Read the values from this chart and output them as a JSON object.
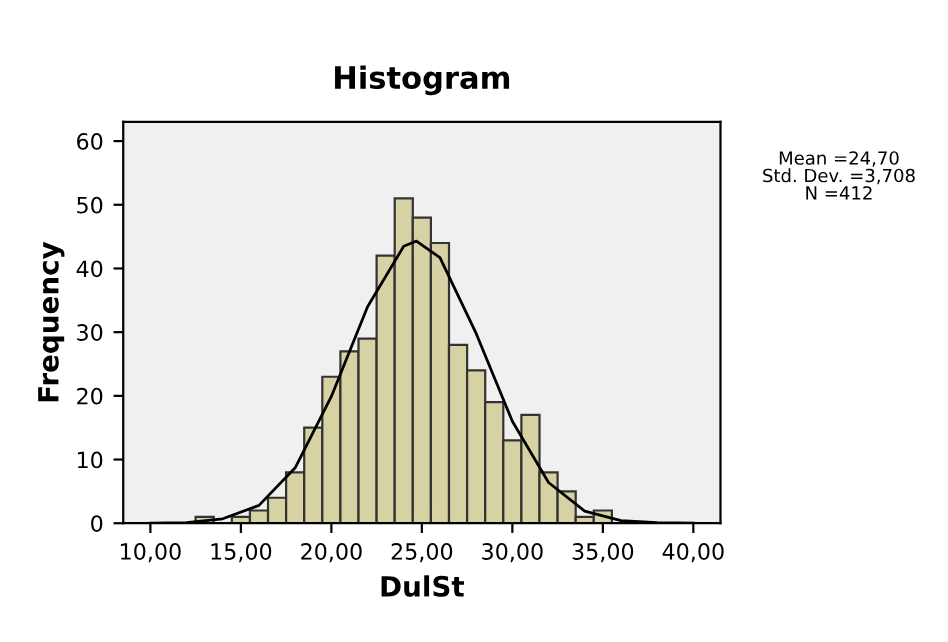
{
  "chart_data": {
    "type": "histogram",
    "title": "Histogram",
    "xlabel": "DulSt",
    "ylabel": "Frequency",
    "bins": [
      12.5,
      13.5,
      14.5,
      15.5,
      16.5,
      17.5,
      18.5,
      19.5,
      20.5,
      21.5,
      22.5,
      23.5,
      24.5,
      25.5,
      26.5,
      27.5,
      28.5,
      29.5,
      30.5,
      31.5,
      32.5,
      33.5,
      34.5,
      35.5
    ],
    "values": [
      1,
      0,
      1,
      2,
      4,
      8,
      15,
      23,
      27,
      29,
      42,
      51,
      48,
      44,
      28,
      24,
      19,
      13,
      17,
      8,
      5,
      1,
      2
    ],
    "color": "#d6d2a4",
    "series": [
      {
        "type": "line",
        "color": "#000000",
        "x": [
          10,
          12,
          14,
          16,
          18,
          20,
          22,
          24,
          24.7,
          26,
          28,
          30,
          32,
          34,
          36,
          38,
          40
        ],
        "values": [
          0,
          0.1,
          0.7,
          2.8,
          8.7,
          19.9,
          34,
          43.5,
          44.3,
          41.7,
          29.8,
          16,
          6.4,
          1.9,
          0.4,
          0.1,
          0
        ]
      }
    ],
    "xlim": [
      8.5,
      41.5
    ],
    "xticks": [
      {
        "value": 10,
        "label": "10,00"
      },
      {
        "value": 15,
        "label": "15,00"
      },
      {
        "value": 20,
        "label": "20,00"
      },
      {
        "value": 25,
        "label": "25,00"
      },
      {
        "value": 30,
        "label": "30,00"
      },
      {
        "value": 35,
        "label": "35,00"
      },
      {
        "value": 40,
        "label": "40,00"
      }
    ],
    "ylim": [
      0,
      63
    ],
    "yticks": [
      0,
      10,
      20,
      30,
      40,
      50,
      60
    ],
    "annotations": [
      "Mean =24,70\nStd. Dev. =3,708\nN =412"
    ],
    "grid": false,
    "legend": false
  }
}
